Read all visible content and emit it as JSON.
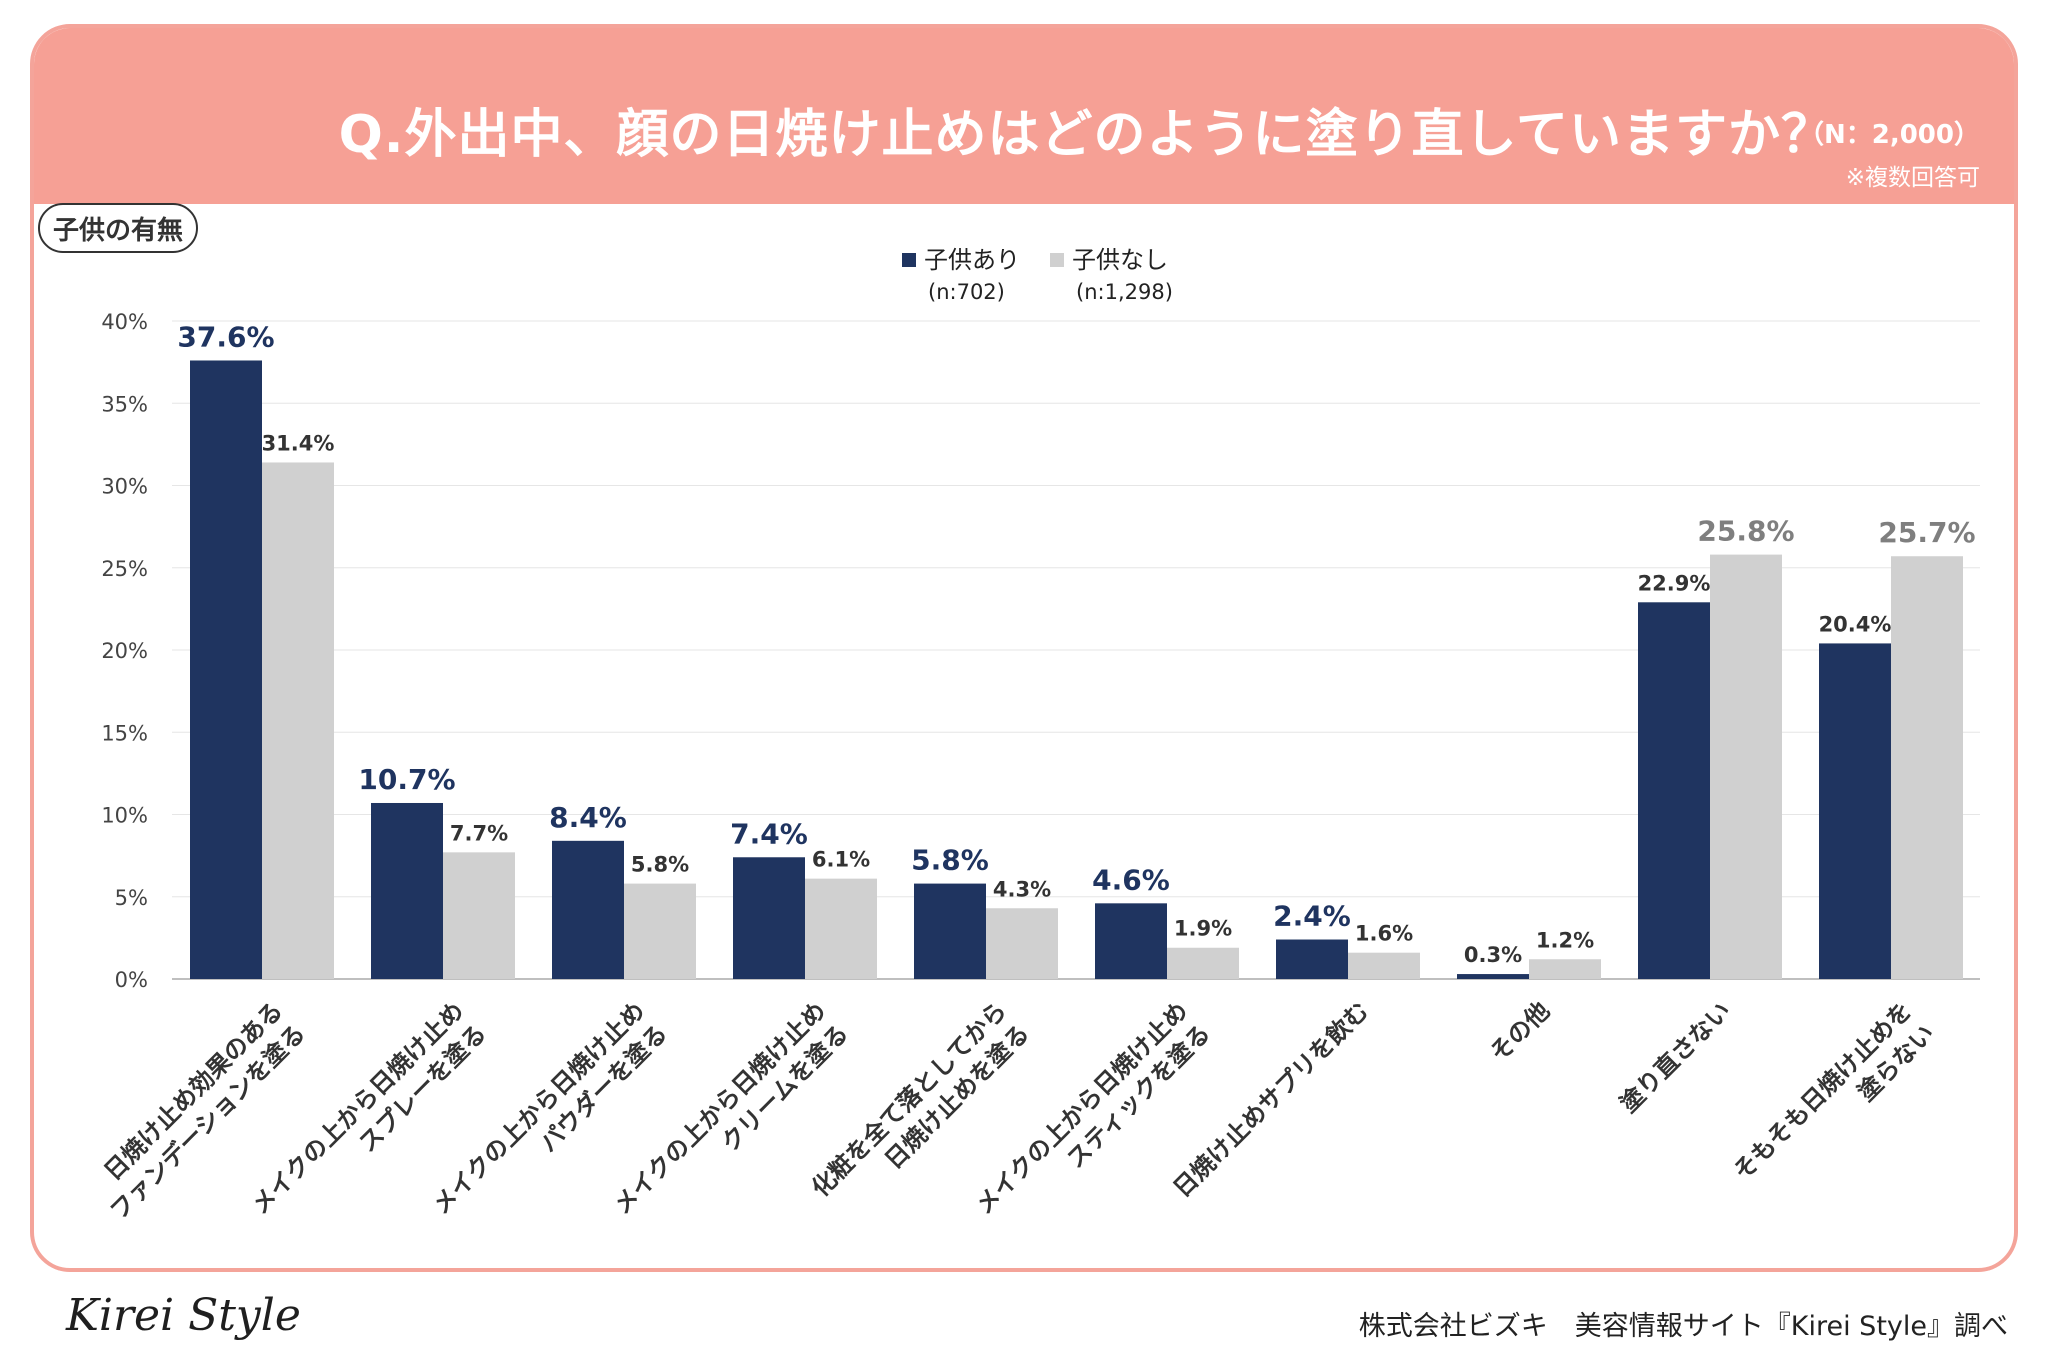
{
  "header": {
    "title": "Q.外出中、顔の日焼け止めはどのように塗り直していますか？",
    "sample": "（N：2,000）",
    "note": "※複数回答可"
  },
  "segment_label": "子供の有無",
  "colors": {
    "header_bg": "#f6a095",
    "series_with_children": "#1f3460",
    "series_without_children": "#d0d0d0",
    "highlight_label_gray": "#7f7f7f"
  },
  "chart_data": {
    "type": "bar",
    "categories": [
      "日焼け止め効果のある\nファンデーションを塗る",
      "メイクの上から日焼け止め\nスプレーを塗る",
      "メイクの上から日焼け止め\nパウダーを塗る",
      "メイクの上から日焼け止め\nクリームを塗る",
      "化粧を全て落としてから\n日焼け止めを塗る",
      "メイクの上から日焼け止め\nスティックを塗る",
      "日焼け止めサプリを飲む",
      "その他",
      "塗り直さない",
      "そもそも日焼け止めを\n塗らない"
    ],
    "series": [
      {
        "name": "子供あり",
        "n_label": "(n:702)",
        "values": [
          37.6,
          10.7,
          8.4,
          7.4,
          5.8,
          4.6,
          2.4,
          0.3,
          22.9,
          20.4
        ],
        "data_labels": [
          "37.6%",
          "10.7%",
          "8.4%",
          "7.4%",
          "5.8%",
          "4.6%",
          "2.4%",
          "0.3%",
          "22.9%",
          "20.4%"
        ],
        "emphasized": [
          true,
          true,
          true,
          true,
          true,
          true,
          true,
          false,
          false,
          false
        ]
      },
      {
        "name": "子供なし",
        "n_label": "(n:1,298)",
        "values": [
          31.4,
          7.7,
          5.8,
          6.1,
          4.3,
          1.9,
          1.6,
          1.2,
          25.8,
          25.7
        ],
        "data_labels": [
          "31.4%",
          "7.7%",
          "5.8%",
          "6.1%",
          "4.3%",
          "1.9%",
          "1.6%",
          "1.2%",
          "25.8%",
          "25.7%"
        ],
        "emphasized": [
          false,
          false,
          false,
          false,
          false,
          false,
          false,
          false,
          true,
          true
        ]
      }
    ],
    "y_ticks": [
      "0%",
      "5%",
      "10%",
      "15%",
      "20%",
      "25%",
      "30%",
      "35%",
      "40%"
    ],
    "ylim": [
      0,
      40
    ],
    "grid": true,
    "legend": "top-center"
  },
  "footer": {
    "brand": "Kirei Style",
    "credit": "株式会社ビズキ　美容情報サイト『Kirei Style』調べ"
  }
}
